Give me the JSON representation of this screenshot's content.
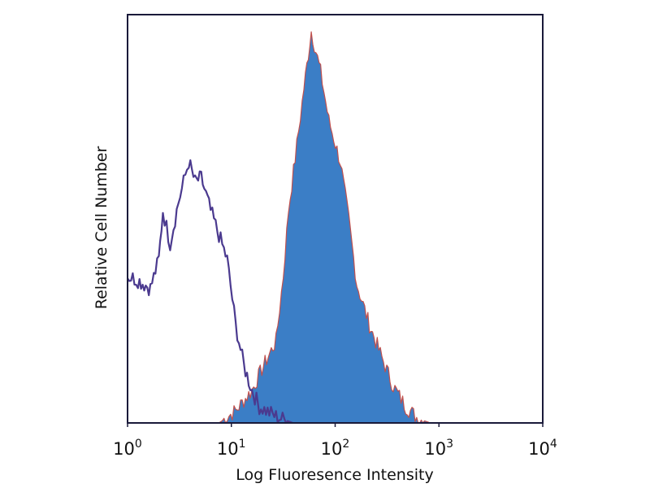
{
  "chart_data": {
    "type": "area",
    "title": "",
    "xlabel": "Log Fluoresence Intensity",
    "ylabel": "Relative Cell Number",
    "xscale": "log",
    "xlim": [
      1,
      10000
    ],
    "ylim": [
      0,
      100
    ],
    "grid": false,
    "x_ticks": [
      {
        "base": "10",
        "exp": "0",
        "value": 1
      },
      {
        "base": "10",
        "exp": "1",
        "value": 10
      },
      {
        "base": "10",
        "exp": "2",
        "value": 100
      },
      {
        "base": "10",
        "exp": "3",
        "value": 1000
      },
      {
        "base": "10",
        "exp": "4",
        "value": 10000
      }
    ],
    "series": [
      {
        "style": "filled",
        "color": "#3b7ec6",
        "outline_color": "#c0504d",
        "x": [
          7.6,
          11,
          15.8,
          20.4,
          26.9,
          31.6,
          35.5,
          42.7,
          50,
          58.9,
          72.4,
          87.1,
          112,
          135,
          162,
          214,
          282,
          363,
          479,
          631,
          832
        ],
        "y": [
          0,
          3,
          8,
          14,
          20,
          36,
          52,
          68,
          82,
          96,
          86,
          74,
          64,
          50,
          34,
          24,
          16,
          9,
          4,
          1,
          0
        ]
      },
      {
        "style": "outline",
        "color": "#4b3a8f",
        "x": [
          1,
          1.26,
          1.66,
          2.0,
          2.19,
          2.57,
          3.09,
          3.89,
          4.47,
          5.13,
          6.31,
          7.59,
          9.12,
          11,
          13.2,
          15.8,
          18.6,
          26.9,
          38.9
        ],
        "y": [
          36,
          35,
          33,
          40,
          52,
          44,
          54,
          64,
          59,
          60,
          52,
          46,
          40,
          24,
          14,
          8,
          4,
          1.6,
          0
        ]
      }
    ]
  }
}
